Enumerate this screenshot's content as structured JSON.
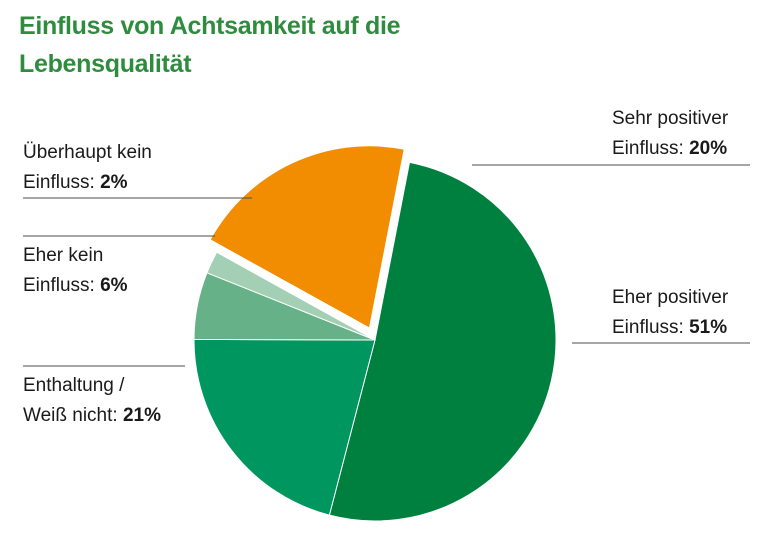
{
  "title_lines": [
    "Einfluss von Achtsamkeit auf die",
    "Lebensqualität"
  ],
  "chart_data": {
    "type": "pie",
    "title": "Einfluss von Achtsamkeit auf die Lebensqualität",
    "slices": [
      {
        "label_lines": [
          "Sehr positiver",
          "Einfluss:"
        ],
        "value": 20,
        "value_label": "20%",
        "color": "#f28c00",
        "exploded": true
      },
      {
        "label_lines": [
          "Eher positiver",
          "Einfluss:"
        ],
        "value": 51,
        "value_label": "51%",
        "color": "#00803e",
        "exploded": false
      },
      {
        "label_lines": [
          "Enthaltung /",
          "Weiß nicht:"
        ],
        "value": 21,
        "value_label": "21%",
        "color": "#009660",
        "exploded": false
      },
      {
        "label_lines": [
          "Eher kein",
          "Einfluss:"
        ],
        "value": 6,
        "value_label": "6%",
        "color": "#66b188",
        "exploded": false
      },
      {
        "label_lines": [
          "Überhaupt kein",
          "Einfluss:"
        ],
        "value": 2,
        "value_label": "2%",
        "color": "#a3cfb4",
        "exploded": false
      }
    ]
  }
}
